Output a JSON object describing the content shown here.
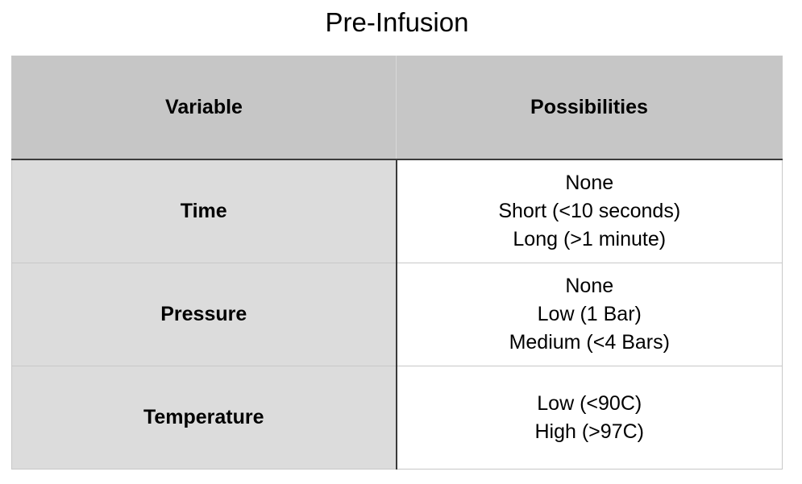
{
  "title": "Pre-Infusion",
  "table": {
    "headers": {
      "variable": "Variable",
      "possibilities": "Possibilities"
    },
    "rows": [
      {
        "variable": "Time",
        "options": [
          "None",
          "Short (<10 seconds)",
          "Long (>1 minute)"
        ]
      },
      {
        "variable": "Pressure",
        "options": [
          "None",
          "Low (1 Bar)",
          "Medium (<4 Bars)"
        ]
      },
      {
        "variable": "Temperature",
        "options": [
          "Low (<90C)",
          "High (>97C)"
        ]
      }
    ]
  }
}
